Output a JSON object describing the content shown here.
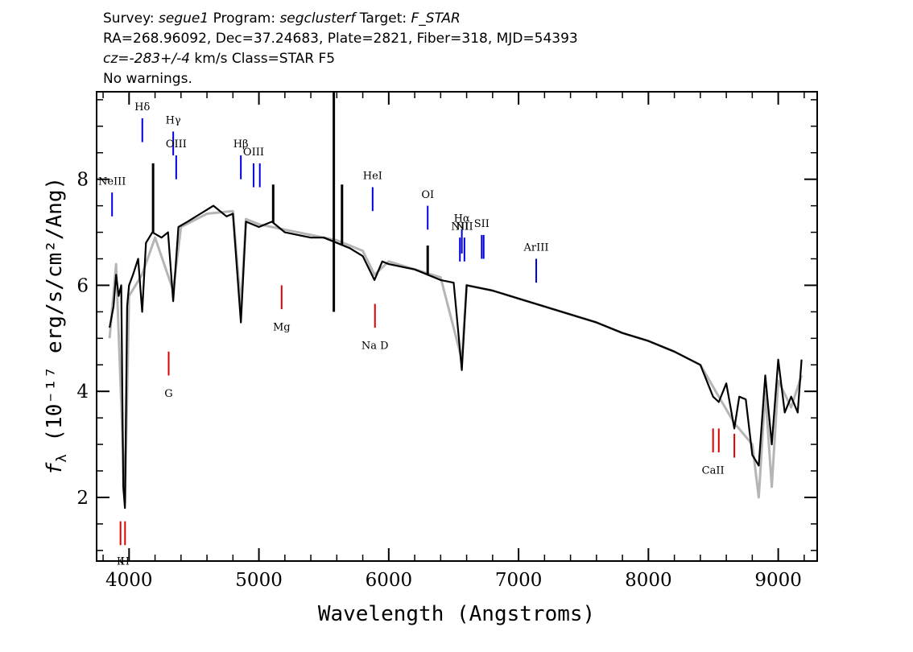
{
  "header": {
    "line1": [
      {
        "text": "Survey: ",
        "italic": false
      },
      {
        "text": "segue1",
        "italic": true
      },
      {
        "text": " Program: ",
        "italic": false
      },
      {
        "text": "segclusterf",
        "italic": true
      },
      {
        "text": " Target: ",
        "italic": false
      },
      {
        "text": "F_STAR",
        "italic": true
      }
    ],
    "line2": "RA=268.96092, Dec=37.24683, Plate=2821, Fiber=318, MJD=54393",
    "line3": [
      {
        "text": "cz=-283+/-4",
        "italic": true
      },
      {
        "text": " km/s Class=STAR F5",
        "italic": false
      }
    ],
    "line4": "No warnings."
  },
  "chart_data": {
    "type": "line",
    "xlabel": "Wavelength (Angstroms)",
    "ylabel": "fλ (10⁻¹⁷ erg/s/cm²/Ang)",
    "xlim": [
      3750,
      9300
    ],
    "ylim": [
      0.8,
      9.65
    ],
    "x_ticks": [
      4000,
      5000,
      6000,
      7000,
      8000,
      9000
    ],
    "y_ticks": [
      2,
      4,
      6,
      8
    ],
    "series": [
      {
        "role": "flux",
        "color": "#000000",
        "x": [
          3850,
          3880,
          3900,
          3920,
          3940,
          3955,
          3968,
          3985,
          4000,
          4030,
          4070,
          4101,
          4130,
          4180,
          4250,
          4300,
          4340,
          4380,
          4450,
          4550,
          4650,
          4700,
          4750,
          4800,
          4861,
          4900,
          5000,
          5100,
          5200,
          5300,
          5400,
          5500,
          5600,
          5700,
          5800,
          5890,
          5950,
          6000,
          6100,
          6200,
          6300,
          6400,
          6500,
          6563,
          6600,
          6700,
          6800,
          7000,
          7200,
          7400,
          7600,
          7800,
          8000,
          8200,
          8400,
          8498,
          8542,
          8600,
          8662,
          8700,
          8750,
          8800,
          8850,
          8900,
          8950,
          9000,
          9050,
          9100,
          9150,
          9180
        ],
        "y": [
          5.2,
          5.6,
          6.2,
          5.8,
          6.0,
          2.2,
          1.8,
          5.6,
          6.0,
          6.2,
          6.5,
          5.5,
          6.8,
          7.0,
          6.9,
          7.0,
          5.7,
          7.1,
          7.2,
          7.35,
          7.5,
          7.4,
          7.3,
          7.35,
          5.3,
          7.2,
          7.1,
          7.2,
          7.0,
          6.95,
          6.9,
          6.9,
          6.8,
          6.7,
          6.55,
          6.1,
          6.45,
          6.4,
          6.35,
          6.3,
          6.2,
          6.1,
          6.05,
          4.4,
          6.0,
          5.95,
          5.9,
          5.75,
          5.6,
          5.45,
          5.3,
          5.1,
          4.95,
          4.75,
          4.5,
          3.9,
          3.8,
          4.15,
          3.3,
          3.9,
          3.85,
          2.8,
          2.6,
          4.3,
          3.0,
          4.6,
          3.6,
          3.9,
          3.6,
          4.6
        ]
      },
      {
        "role": "model",
        "color": "#b5b5b5",
        "x": [
          3850,
          3900,
          3968,
          4000,
          4100,
          4200,
          4340,
          4400,
          4600,
          4800,
          4861,
          4900,
          5000,
          5200,
          5400,
          5600,
          5800,
          5890,
          6000,
          6200,
          6400,
          6563,
          6600,
          6800,
          7000,
          7200,
          7400,
          7600,
          7800,
          8000,
          8200,
          8400,
          8542,
          8662,
          8800,
          8850,
          8900,
          8950,
          9000,
          9100,
          9180
        ],
        "y": [
          5.0,
          6.4,
          1.9,
          5.8,
          6.2,
          6.9,
          5.9,
          7.1,
          7.35,
          7.4,
          5.6,
          7.25,
          7.15,
          7.05,
          6.95,
          6.85,
          6.65,
          6.2,
          6.45,
          6.3,
          6.15,
          4.6,
          6.0,
          5.9,
          5.75,
          5.6,
          5.45,
          5.3,
          5.1,
          4.95,
          4.75,
          4.5,
          3.9,
          3.4,
          3.0,
          2.0,
          4.0,
          2.2,
          4.2,
          3.7,
          4.3
        ]
      }
    ],
    "spikes": [
      {
        "x": 4185,
        "y": 8.3
      },
      {
        "x": 5110,
        "y": 7.9
      },
      {
        "x": 5577,
        "y": 9.65
      },
      {
        "x": 5577,
        "y": 5.5
      },
      {
        "x": 5640,
        "y": 7.9
      },
      {
        "x": 6300,
        "y": 6.75
      }
    ],
    "emission_lines": [
      {
        "name": "NeIII",
        "x": 3869,
        "y_bottom": 7.3,
        "y_top": 7.75,
        "label_y": 7.9
      },
      {
        "name": "Hδ",
        "x": 4102,
        "y_bottom": 8.7,
        "y_top": 9.15,
        "label_y": 9.3
      },
      {
        "name": "Hγ",
        "x": 4340,
        "y_bottom": 8.45,
        "y_top": 8.9,
        "label_y": 9.05
      },
      {
        "name": "OIII",
        "x": 4363,
        "y_bottom": 8.0,
        "y_top": 8.45,
        "label_y": 8.6
      },
      {
        "name": "Hβ",
        "x": 4861,
        "y_bottom": 8.0,
        "y_top": 8.45,
        "label_y": 8.6
      },
      {
        "name": "OIII",
        "x": 4959,
        "y_bottom": 7.85,
        "y_top": 8.3,
        "label_y": 8.45
      },
      {
        "name": "",
        "x": 5007,
        "y_bottom": 7.85,
        "y_top": 8.3,
        "label_y": 8.45
      },
      {
        "name": "HeI",
        "x": 5876,
        "y_bottom": 7.4,
        "y_top": 7.85,
        "label_y": 8.0
      },
      {
        "name": "OI",
        "x": 6300,
        "y_bottom": 7.05,
        "y_top": 7.5,
        "label_y": 7.65
      },
      {
        "name": "NII",
        "x": 6548,
        "y_bottom": 6.45,
        "y_top": 6.9,
        "label_y": 7.05
      },
      {
        "name": "Hα",
        "x": 6563,
        "y_bottom": 6.6,
        "y_top": 7.05,
        "label_y": 7.2
      },
      {
        "name": "NII",
        "x": 6583,
        "y_bottom": 6.45,
        "y_top": 6.9,
        "label_y": 7.05
      },
      {
        "name": "SII",
        "x": 6716,
        "y_bottom": 6.5,
        "y_top": 6.95,
        "label_y": 7.1
      },
      {
        "name": "",
        "x": 6731,
        "y_bottom": 6.5,
        "y_top": 6.95,
        "label_y": 7.1
      },
      {
        "name": "ArIII",
        "x": 7136,
        "y_bottom": 6.05,
        "y_top": 6.5,
        "label_y": 6.65
      }
    ],
    "absorption_lines": [
      {
        "name": "K",
        "x": 3934,
        "y_bottom": 1.1,
        "y_top": 1.55,
        "label_y": 0.88
      },
      {
        "name": "H",
        "x": 3969,
        "y_bottom": 1.1,
        "y_top": 1.55,
        "label_y": 0.88
      },
      {
        "name": "G",
        "x": 4305,
        "y_bottom": 4.3,
        "y_top": 4.75,
        "label_y": 4.05
      },
      {
        "name": "Mg",
        "x": 5175,
        "y_bottom": 5.55,
        "y_top": 6.0,
        "label_y": 5.3
      },
      {
        "name": "Na D",
        "x": 5894,
        "y_bottom": 5.2,
        "y_top": 5.65,
        "label_y": 4.95
      },
      {
        "name": "CaII",
        "x": 8498,
        "y_bottom": 2.85,
        "y_top": 3.3,
        "label_y": 2.6
      },
      {
        "name": "",
        "x": 8542,
        "y_bottom": 2.85,
        "y_top": 3.3,
        "label_y": 2.6
      },
      {
        "name": "",
        "x": 8662,
        "y_bottom": 2.75,
        "y_top": 3.2,
        "label_y": 2.6
      }
    ],
    "colors": {
      "emission": "#0000dd",
      "absorption": "#dd0000",
      "axes": "#000000"
    }
  }
}
